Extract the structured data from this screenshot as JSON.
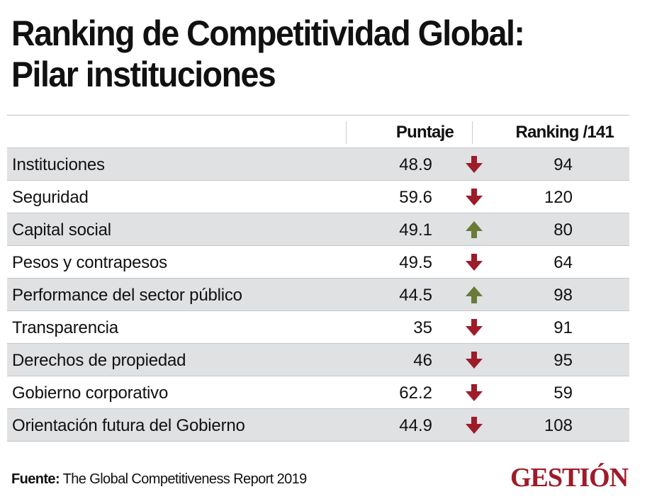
{
  "title": {
    "line1": "Ranking de Competitividad Global:",
    "line2": "Pilar instituciones"
  },
  "table": {
    "headers": {
      "label": "",
      "score": "Puntaje",
      "rank": "Ranking /141"
    },
    "rows": [
      {
        "label": "Instituciones",
        "score": "48.9",
        "trend": "down",
        "rank": "94"
      },
      {
        "label": "Seguridad",
        "score": "59.6",
        "trend": "down",
        "rank": "120"
      },
      {
        "label": "Capital social",
        "score": "49.1",
        "trend": "up",
        "rank": "80"
      },
      {
        "label": "Pesos y contrapesos",
        "score": "49.5",
        "trend": "down",
        "rank": "64"
      },
      {
        "label": "Performance del sector público",
        "score": "44.5",
        "trend": "up",
        "rank": "98"
      },
      {
        "label": "Transparencia",
        "score": "35",
        "trend": "down",
        "rank": "91"
      },
      {
        "label": "Derechos de propiedad",
        "score": "46",
        "trend": "down",
        "rank": "95"
      },
      {
        "label": "Gobierno corporativo",
        "score": "62.2",
        "trend": "down",
        "rank": "59"
      },
      {
        "label": "Orientación futura del Gobierno",
        "score": "44.9",
        "trend": "down",
        "rank": "108"
      }
    ]
  },
  "icons": {
    "up": "arrow-up-icon",
    "down": "arrow-down-icon"
  },
  "colors": {
    "down": "#9e1b2a",
    "up": "#6b7a38",
    "row_shade": "#dfe1e3",
    "brand": "#9e1b2a"
  },
  "footer": {
    "source_label": "Fuente:",
    "source_text": " The Global Competitiveness Report 2019"
  },
  "brand": "GESTIÓN"
}
